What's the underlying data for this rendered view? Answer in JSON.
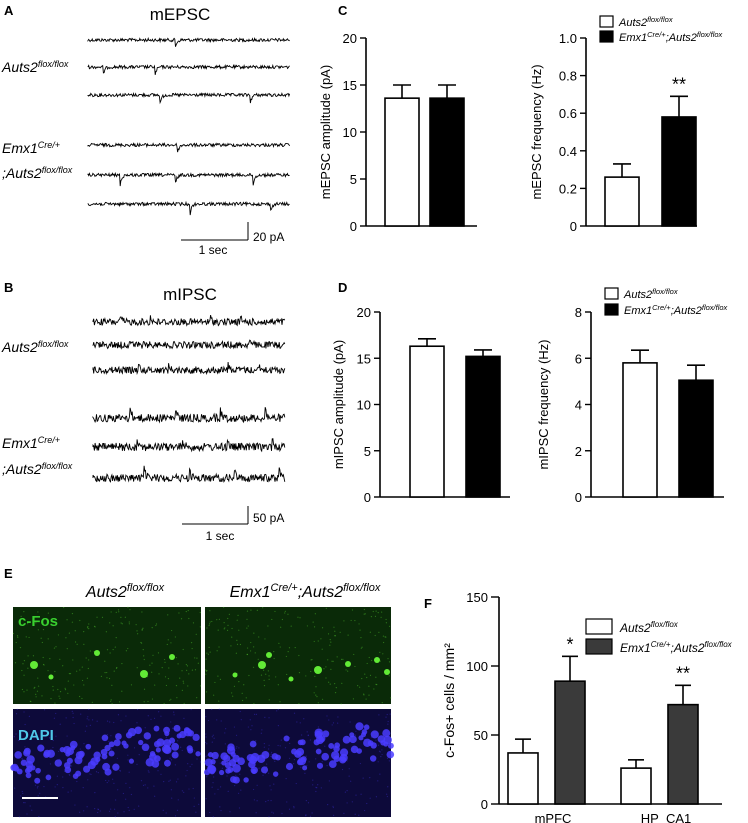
{
  "panels": {
    "A": {
      "letter": "A",
      "title": "mEPSC",
      "label_ctrl": {
        "base": "Auts2",
        "sup": "flox/flox"
      },
      "label_ko": {
        "line1_base": "Emx1",
        "line1_sup": "Cre/+",
        "line2_base": ";Auts2",
        "line2_sup": "flox/flox"
      },
      "scale_time": "1 sec",
      "scale_amp": "20 pA"
    },
    "B": {
      "letter": "B",
      "title": "mIPSC",
      "label_ctrl": {
        "base": "Auts2",
        "sup": "flox/flox"
      },
      "label_ko": {
        "line1_base": "Emx1",
        "line1_sup": "Cre/+",
        "line2_base": ";Auts2",
        "line2_sup": "flox/flox"
      },
      "scale_time": "1 sec",
      "scale_amp": "50 pA"
    },
    "C": {
      "letter": "C"
    },
    "D": {
      "letter": "D"
    },
    "E": {
      "letter": "E",
      "col_ctrl": {
        "base": "Auts2",
        "sup": "flox/flox"
      },
      "col_ko": {
        "base1": "Emx1",
        "sup1": "Cre/+",
        "base2": ";Auts2",
        "sup2": "flox/flox"
      },
      "row_cfos": "c-Fos",
      "row_dapi": "DAPI",
      "colors": {
        "cfos_text": "#39d02f",
        "dapi_text": "#4fc8e8",
        "cfos_bg": "#0a2a08",
        "dapi_bg": "#0d0a3a",
        "cfos_cell": "#6cff3c",
        "dapi_cell": "#4a3cff"
      }
    },
    "F": {
      "letter": "F"
    }
  },
  "legends": {
    "ctrl": {
      "base": "Auts2",
      "sup": "flox/flox"
    },
    "ko": {
      "base1": "Emx1",
      "sup1": "Cre/+",
      "base2": ";Auts2",
      "sup2": "flox/flox"
    }
  },
  "colors": {
    "ctrl_fill": "#ffffff",
    "ko_fill_C": "#000000",
    "ko_fill_D": "#000000",
    "ko_fill_F": "#3a3a3a"
  },
  "chart_data": [
    {
      "id": "C-amp",
      "type": "bar",
      "categories": [
        "Auts2 flox/flox",
        "Emx1 Cre/+;Auts2 flox/flox"
      ],
      "values": [
        13.6,
        13.6
      ],
      "errors": [
        1.4,
        1.4
      ],
      "ylabel": "mEPSC amplitude (pA)",
      "ylim": [
        0,
        20
      ],
      "yticks": [
        "0",
        "5",
        "10",
        "15",
        "20"
      ],
      "significance": [
        "",
        ""
      ]
    },
    {
      "id": "C-freq",
      "type": "bar",
      "categories": [
        "Auts2 flox/flox",
        "Emx1 Cre/+;Auts2 flox/flox"
      ],
      "values": [
        0.26,
        0.58
      ],
      "errors": [
        0.07,
        0.11
      ],
      "ylabel": "mEPSC frequency (Hz)",
      "ylim": [
        0,
        1.0
      ],
      "yticks": [
        "0",
        "0.2",
        "0.4",
        "0.6",
        "0.8",
        "1.0"
      ],
      "significance": [
        "",
        "**"
      ]
    },
    {
      "id": "D-amp",
      "type": "bar",
      "categories": [
        "Auts2 flox/flox",
        "Emx1 Cre/+;Auts2 flox/flox"
      ],
      "values": [
        16.3,
        15.2
      ],
      "errors": [
        0.8,
        0.7
      ],
      "ylabel": "mIPSC amplitude (pA)",
      "ylim": [
        0,
        20
      ],
      "yticks": [
        "0",
        "5",
        "10",
        "15",
        "20"
      ],
      "significance": [
        "",
        ""
      ]
    },
    {
      "id": "D-freq",
      "type": "bar",
      "categories": [
        "Auts2 flox/flox",
        "Emx1 Cre/+;Auts2 flox/flox"
      ],
      "values": [
        5.8,
        5.05
      ],
      "errors": [
        0.55,
        0.65
      ],
      "ylabel": "mIPSC frequency (Hz)",
      "ylim": [
        0,
        8
      ],
      "yticks": [
        "0",
        "2",
        "4",
        "6",
        "8"
      ],
      "significance": [
        "",
        ""
      ]
    },
    {
      "id": "F",
      "type": "bar",
      "categories": [
        "mPFC",
        "HP_CA1"
      ],
      "series": [
        {
          "name": "Auts2 flox/flox",
          "values": [
            37,
            26
          ],
          "errors": [
            10,
            6
          ]
        },
        {
          "name": "Emx1 Cre/+;Auts2 flox/flox",
          "values": [
            89,
            72
          ],
          "errors": [
            18,
            14
          ]
        }
      ],
      "ylabel": "c-Fos+ cells / mm²",
      "ylim": [
        0,
        150
      ],
      "yticks": [
        "0",
        "50",
        "100",
        "150"
      ],
      "significance": [
        "*",
        "**"
      ]
    }
  ]
}
